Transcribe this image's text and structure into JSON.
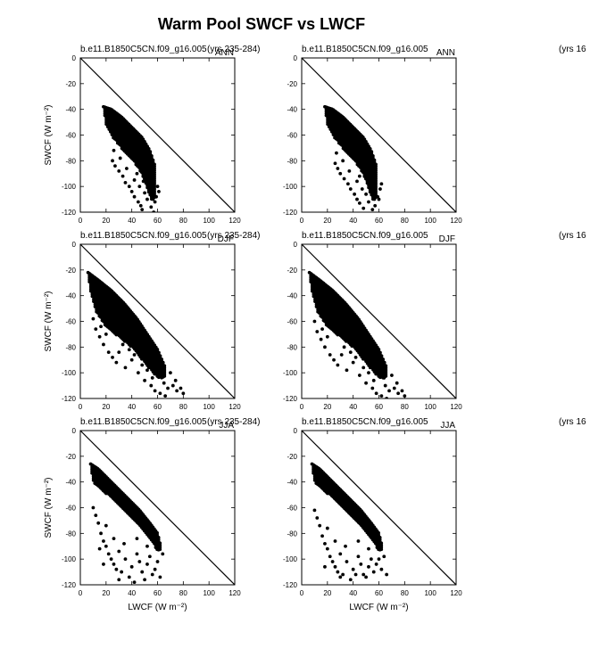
{
  "figure_title": "Warm Pool SWCF vs LWCF",
  "chart_data": [
    {
      "type": "scatter",
      "case_label": "b.e11.B1850C5CN.f09_g16.005",
      "years_label": "(yrs 235-284)",
      "season": "ANN",
      "ylabel": "SWCF (W m⁻²)",
      "xlabel": "",
      "xlim": [
        0,
        120
      ],
      "ylim": [
        -120,
        0
      ],
      "xticks": [
        0,
        20,
        40,
        60,
        80,
        100,
        120
      ],
      "yticks": [
        0,
        -20,
        -40,
        -60,
        -80,
        -100,
        -120
      ],
      "reference_line": [
        [
          0,
          0
        ],
        [
          120,
          -120
        ]
      ],
      "cloud": {
        "x_left": [
          18,
          20,
          25,
          32,
          40,
          48,
          55
        ],
        "y_left": [
          -38,
          -52,
          -62,
          -70,
          -78,
          -90,
          -110
        ],
        "x_right": [
          18,
          24,
          32,
          40,
          48,
          54,
          58
        ],
        "y_right": [
          -38,
          -40,
          -46,
          -54,
          -62,
          -72,
          -84
        ]
      },
      "scatter_points": [
        [
          25,
          -80
        ],
        [
          27,
          -84
        ],
        [
          30,
          -88
        ],
        [
          33,
          -92
        ],
        [
          35,
          -97
        ],
        [
          38,
          -100
        ],
        [
          40,
          -104
        ],
        [
          42,
          -108
        ],
        [
          45,
          -112
        ],
        [
          47,
          -115
        ],
        [
          48,
          -118
        ],
        [
          50,
          -105
        ],
        [
          52,
          -110
        ],
        [
          55,
          -116
        ],
        [
          57,
          -120
        ],
        [
          58,
          -112
        ],
        [
          60,
          -100
        ],
        [
          53,
          -98
        ],
        [
          44,
          -90
        ],
        [
          36,
          -86
        ],
        [
          31,
          -78
        ],
        [
          26,
          -72
        ],
        [
          55,
          -102
        ],
        [
          59,
          -108
        ],
        [
          61,
          -104
        ],
        [
          49,
          -96
        ],
        [
          46,
          -100
        ],
        [
          42,
          -95
        ]
      ]
    },
    {
      "type": "scatter",
      "case_label": "b.e11.B1850C5CN.f09_g16.005",
      "years_label": "(yrs 16",
      "season": "ANN",
      "ylabel": "",
      "xlabel": "",
      "xlim": [
        0,
        120
      ],
      "ylim": [
        -120,
        0
      ],
      "xticks": [
        0,
        20,
        40,
        60,
        80,
        100,
        120
      ],
      "yticks": [
        0,
        -20,
        -40,
        -60,
        -80,
        -100,
        -120
      ],
      "reference_line": [
        [
          0,
          0
        ],
        [
          120,
          -120
        ]
      ],
      "cloud": {
        "x_left": [
          18,
          20,
          25,
          32,
          40,
          48,
          55
        ],
        "y_left": [
          -38,
          -52,
          -62,
          -70,
          -78,
          -90,
          -110
        ],
        "x_right": [
          18,
          24,
          32,
          40,
          48,
          54,
          58
        ],
        "y_right": [
          -38,
          -40,
          -46,
          -54,
          -62,
          -72,
          -84
        ]
      },
      "scatter_points": [
        [
          26,
          -82
        ],
        [
          28,
          -86
        ],
        [
          30,
          -90
        ],
        [
          33,
          -94
        ],
        [
          36,
          -98
        ],
        [
          38,
          -102
        ],
        [
          41,
          -106
        ],
        [
          43,
          -110
        ],
        [
          45,
          -113
        ],
        [
          48,
          -117
        ],
        [
          50,
          -106
        ],
        [
          52,
          -112
        ],
        [
          55,
          -118
        ],
        [
          57,
          -115
        ],
        [
          59,
          -108
        ],
        [
          61,
          -102
        ],
        [
          53,
          -100
        ],
        [
          45,
          -92
        ],
        [
          37,
          -88
        ],
        [
          32,
          -80
        ],
        [
          27,
          -74
        ],
        [
          56,
          -104
        ],
        [
          60,
          -110
        ],
        [
          62,
          -98
        ],
        [
          50,
          -94
        ],
        [
          47,
          -102
        ],
        [
          43,
          -96
        ]
      ]
    },
    {
      "type": "scatter",
      "case_label": "b.e11.B1850C5CN.f09_g16.005",
      "years_label": "(yrs 235-284)",
      "season": "DJF",
      "ylabel": "SWCF (W m⁻²)",
      "xlabel": "",
      "xlim": [
        0,
        120
      ],
      "ylim": [
        -120,
        0
      ],
      "xticks": [
        0,
        20,
        40,
        60,
        80,
        100,
        120
      ],
      "yticks": [
        0,
        -20,
        -40,
        -60,
        -80,
        -100,
        -120
      ],
      "reference_line": [
        [
          0,
          0
        ],
        [
          120,
          -120
        ]
      ],
      "cloud": {
        "x_left": [
          6,
          8,
          12,
          20,
          30,
          40,
          50,
          60
        ],
        "y_left": [
          -22,
          -36,
          -52,
          -64,
          -72,
          -80,
          -92,
          -104
        ],
        "x_right": [
          6,
          14,
          24,
          34,
          44,
          52,
          60,
          66
        ],
        "y_right": [
          -22,
          -28,
          -36,
          -46,
          -58,
          -70,
          -82,
          -96
        ]
      },
      "scatter_points": [
        [
          10,
          -58
        ],
        [
          12,
          -66
        ],
        [
          15,
          -72
        ],
        [
          18,
          -78
        ],
        [
          22,
          -84
        ],
        [
          25,
          -88
        ],
        [
          28,
          -92
        ],
        [
          30,
          -84
        ],
        [
          35,
          -96
        ],
        [
          40,
          -90
        ],
        [
          45,
          -100
        ],
        [
          50,
          -106
        ],
        [
          55,
          -110
        ],
        [
          58,
          -114
        ],
        [
          62,
          -116
        ],
        [
          65,
          -108
        ],
        [
          68,
          -112
        ],
        [
          72,
          -110
        ],
        [
          75,
          -114
        ],
        [
          78,
          -112
        ],
        [
          80,
          -116
        ],
        [
          70,
          -100
        ],
        [
          64,
          -102
        ],
        [
          60,
          -96
        ],
        [
          52,
          -98
        ],
        [
          48,
          -94
        ],
        [
          42,
          -86
        ],
        [
          38,
          -82
        ],
        [
          20,
          -70
        ],
        [
          16,
          -64
        ],
        [
          33,
          -78
        ],
        [
          56,
          -104
        ],
        [
          66,
          -118
        ],
        [
          74,
          -106
        ]
      ]
    },
    {
      "type": "scatter",
      "case_label": "b.e11.B1850C5CN.f09_g16.005",
      "years_label": "(yrs 16",
      "season": "DJF",
      "ylabel": "",
      "xlabel": "",
      "xlim": [
        0,
        120
      ],
      "ylim": [
        -120,
        0
      ],
      "xticks": [
        0,
        20,
        40,
        60,
        80,
        100,
        120
      ],
      "yticks": [
        0,
        -20,
        -40,
        -60,
        -80,
        -100,
        -120
      ],
      "reference_line": [
        [
          0,
          0
        ],
        [
          120,
          -120
        ]
      ],
      "cloud": {
        "x_left": [
          6,
          8,
          12,
          20,
          30,
          40,
          50,
          60
        ],
        "y_left": [
          -22,
          -36,
          -52,
          -64,
          -72,
          -80,
          -92,
          -104
        ],
        "x_right": [
          6,
          14,
          24,
          34,
          44,
          52,
          60,
          66
        ],
        "y_right": [
          -22,
          -28,
          -36,
          -46,
          -58,
          -70,
          -82,
          -96
        ]
      },
      "scatter_points": [
        [
          10,
          -60
        ],
        [
          12,
          -68
        ],
        [
          15,
          -74
        ],
        [
          18,
          -80
        ],
        [
          22,
          -86
        ],
        [
          25,
          -90
        ],
        [
          28,
          -94
        ],
        [
          31,
          -86
        ],
        [
          35,
          -98
        ],
        [
          40,
          -92
        ],
        [
          45,
          -102
        ],
        [
          50,
          -108
        ],
        [
          55,
          -112
        ],
        [
          58,
          -116
        ],
        [
          62,
          -118
        ],
        [
          65,
          -110
        ],
        [
          68,
          -114
        ],
        [
          72,
          -112
        ],
        [
          75,
          -116
        ],
        [
          78,
          -114
        ],
        [
          80,
          -118
        ],
        [
          70,
          -102
        ],
        [
          64,
          -104
        ],
        [
          60,
          -98
        ],
        [
          52,
          -100
        ],
        [
          48,
          -96
        ],
        [
          42,
          -88
        ],
        [
          38,
          -84
        ],
        [
          20,
          -72
        ],
        [
          16,
          -66
        ],
        [
          33,
          -80
        ],
        [
          56,
          -106
        ],
        [
          66,
          -120
        ],
        [
          74,
          -108
        ]
      ]
    },
    {
      "type": "scatter",
      "case_label": "b.e11.B1850C5CN.f09_g16.005",
      "years_label": "(yrs 235-284)",
      "season": "JJA",
      "ylabel": "SWCF (W m⁻²)",
      "xlabel": "LWCF (W m⁻²)",
      "xlim": [
        0,
        120
      ],
      "ylim": [
        -120,
        0
      ],
      "xticks": [
        0,
        20,
        40,
        60,
        80,
        100,
        120
      ],
      "yticks": [
        0,
        -20,
        -40,
        -60,
        -80,
        -100,
        -120
      ],
      "reference_line": [
        [
          0,
          0
        ],
        [
          120,
          -120
        ]
      ],
      "cloud": {
        "x_left": [
          8,
          10,
          16,
          24,
          32,
          40,
          48,
          56,
          60
        ],
        "y_left": [
          -26,
          -40,
          -46,
          -52,
          -60,
          -68,
          -76,
          -86,
          -94
        ],
        "x_right": [
          8,
          14,
          22,
          30,
          38,
          46,
          54,
          60,
          62
        ],
        "y_right": [
          -26,
          -30,
          -38,
          -46,
          -54,
          -62,
          -72,
          -80,
          -88
        ]
      },
      "scatter_points": [
        [
          10,
          -60
        ],
        [
          12,
          -66
        ],
        [
          14,
          -72
        ],
        [
          16,
          -80
        ],
        [
          18,
          -86
        ],
        [
          20,
          -90
        ],
        [
          22,
          -96
        ],
        [
          24,
          -100
        ],
        [
          26,
          -104
        ],
        [
          28,
          -108
        ],
        [
          30,
          -94
        ],
        [
          32,
          -110
        ],
        [
          35,
          -100
        ],
        [
          38,
          -114
        ],
        [
          40,
          -106
        ],
        [
          42,
          -118
        ],
        [
          44,
          -96
        ],
        [
          46,
          -102
        ],
        [
          48,
          -110
        ],
        [
          50,
          -116
        ],
        [
          52,
          -104
        ],
        [
          54,
          -98
        ],
        [
          56,
          -112
        ],
        [
          58,
          -108
        ],
        [
          60,
          -102
        ],
        [
          62,
          -114
        ],
        [
          64,
          -96
        ],
        [
          20,
          -74
        ],
        [
          26,
          -84
        ],
        [
          34,
          -88
        ],
        [
          44,
          -84
        ],
        [
          52,
          -90
        ],
        [
          15,
          -92
        ],
        [
          18,
          -104
        ],
        [
          30,
          -116
        ]
      ]
    },
    {
      "type": "scatter",
      "case_label": "b.e11.B1850C5CN.f09_g16.005",
      "years_label": "(yrs 16",
      "season": "JJA",
      "ylabel": "",
      "xlabel": "LWCF (W m⁻²)",
      "xlim": [
        0,
        120
      ],
      "ylim": [
        -120,
        0
      ],
      "xticks": [
        0,
        20,
        40,
        60,
        80,
        100,
        120
      ],
      "yticks": [
        0,
        -20,
        -40,
        -60,
        -80,
        -100,
        -120
      ],
      "reference_line": [
        [
          0,
          0
        ],
        [
          120,
          -120
        ]
      ],
      "cloud": {
        "x_left": [
          8,
          10,
          16,
          24,
          32,
          40,
          48,
          56,
          60
        ],
        "y_left": [
          -26,
          -40,
          -46,
          -52,
          -60,
          -68,
          -76,
          -86,
          -94
        ],
        "x_right": [
          8,
          14,
          22,
          30,
          38,
          46,
          54,
          60,
          62
        ],
        "y_right": [
          -26,
          -30,
          -38,
          -46,
          -54,
          -62,
          -72,
          -80,
          -88
        ]
      },
      "scatter_points": [
        [
          10,
          -62
        ],
        [
          12,
          -68
        ],
        [
          14,
          -74
        ],
        [
          16,
          -82
        ],
        [
          18,
          -88
        ],
        [
          20,
          -92
        ],
        [
          22,
          -98
        ],
        [
          24,
          -102
        ],
        [
          26,
          -106
        ],
        [
          28,
          -110
        ],
        [
          30,
          -96
        ],
        [
          32,
          -112
        ],
        [
          35,
          -102
        ],
        [
          38,
          -116
        ],
        [
          40,
          -108
        ],
        [
          42,
          -112
        ],
        [
          44,
          -98
        ],
        [
          46,
          -104
        ],
        [
          48,
          -112
        ],
        [
          50,
          -114
        ],
        [
          52,
          -106
        ],
        [
          54,
          -100
        ],
        [
          56,
          -110
        ],
        [
          58,
          -104
        ],
        [
          60,
          -100
        ],
        [
          62,
          -108
        ],
        [
          64,
          -98
        ],
        [
          66,
          -112
        ],
        [
          20,
          -76
        ],
        [
          26,
          -86
        ],
        [
          34,
          -90
        ],
        [
          44,
          -86
        ],
        [
          52,
          -92
        ],
        [
          18,
          -106
        ],
        [
          30,
          -114
        ]
      ]
    }
  ]
}
